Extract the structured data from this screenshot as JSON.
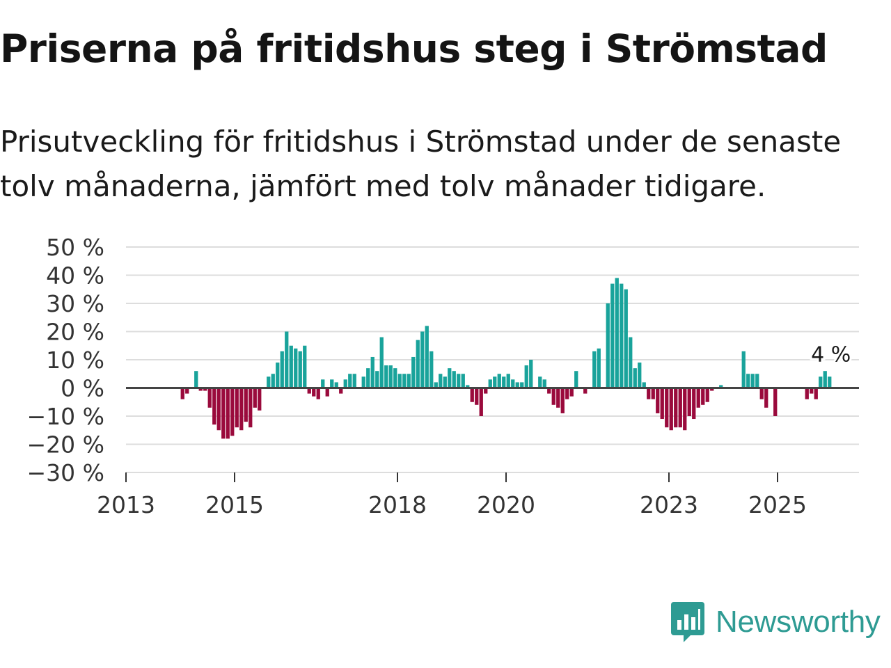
{
  "title": "Priserna på fritidshus steg i Strömstad",
  "subtitle": "Prisutveckling för fritidshus i Strömstad under de senaste tolv månaderna, jämfört med tolv månader tidigare.",
  "brand": {
    "name": "Newsworthy"
  },
  "colors": {
    "positive": "#19a39b",
    "negative": "#9a0a3c",
    "zero_line": "#444444",
    "grid": "#dddddd",
    "text": "#1a1a1a",
    "brand": "#2e9b93"
  },
  "chart_data": {
    "type": "bar",
    "title": "Priserna på fritidshus steg i Strömstad",
    "xlabel": "",
    "ylabel": "",
    "ylim": [
      -30,
      50
    ],
    "y_ticks": [
      50,
      40,
      30,
      20,
      10,
      0,
      -10,
      -20,
      -30
    ],
    "y_tick_labels": [
      "50 %",
      "40 %",
      "30 %",
      "20 %",
      "10 %",
      "0 %",
      "−10 %",
      "−20 %",
      "−30 %"
    ],
    "x_tick_labels": [
      "2013",
      "2015",
      "2018",
      "2020",
      "2023",
      "2025"
    ],
    "x_start": "2013-01",
    "last_value_label": "4 %",
    "values": [
      null,
      null,
      null,
      null,
      null,
      null,
      null,
      null,
      null,
      null,
      null,
      null,
      -4,
      -2,
      null,
      6,
      -1,
      -1,
      -7,
      -13,
      -15,
      -18,
      -18,
      -17,
      -14,
      -15,
      -12,
      -14,
      -7,
      -8,
      null,
      4,
      5,
      9,
      13,
      20,
      15,
      14,
      13,
      15,
      -2,
      -3,
      -4,
      3,
      -3,
      3,
      2,
      -2,
      3,
      5,
      5,
      null,
      4,
      7,
      11,
      6,
      18,
      8,
      8,
      7,
      5,
      5,
      5,
      11,
      17,
      20,
      22,
      13,
      2,
      5,
      4,
      7,
      6,
      5,
      5,
      1,
      -5,
      -6,
      -10,
      -2,
      3,
      4,
      5,
      4,
      5,
      3,
      2,
      2,
      8,
      10,
      null,
      4,
      3,
      -2,
      -6,
      -7,
      -9,
      -4,
      -3,
      6,
      null,
      -2,
      null,
      13,
      14,
      null,
      30,
      37,
      39,
      37,
      35,
      18,
      7,
      9,
      2,
      -4,
      -4,
      -9,
      -11,
      -14,
      -15,
      -14,
      -14,
      -15,
      -10,
      -11,
      -7,
      -6,
      -5,
      -1,
      null,
      1,
      null,
      null,
      null,
      null,
      13,
      5,
      5,
      5,
      -4,
      -7,
      null,
      -10,
      null,
      null,
      null,
      null,
      null,
      null,
      -4,
      -2,
      -4,
      4,
      6,
      4
    ]
  }
}
